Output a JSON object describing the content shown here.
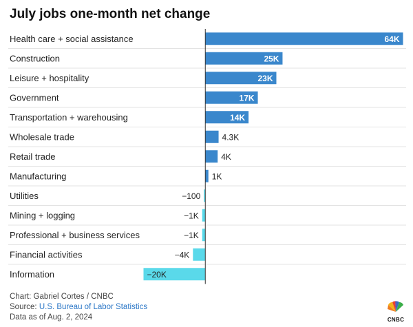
{
  "header": {
    "title": "July jobs one-month net change"
  },
  "colors": {
    "positive": "#3a87cc",
    "negative": "#5ad9ea",
    "gridline": "#e3e3e3",
    "axis": "#333333",
    "link": "#2a76c6"
  },
  "chart_data": {
    "type": "bar",
    "orientation": "horizontal",
    "title": "July jobs one-month net change",
    "xlabel": "",
    "ylabel": "",
    "xlim": [
      -21000,
      65000
    ],
    "categories": [
      "Health care + social assistance",
      "Construction",
      "Leisure + hospitality",
      "Government",
      "Transportation + warehousing",
      "Wholesale trade",
      "Retail trade",
      "Manufacturing",
      "Utilities",
      "Mining + logging",
      "Professional + business services",
      "Financial activities",
      "Information"
    ],
    "values": [
      64000,
      25000,
      23000,
      17000,
      14000,
      4300,
      4000,
      1000,
      -100,
      -1000,
      -1000,
      -4000,
      -20000
    ],
    "labels": [
      "64K",
      "25K",
      "23K",
      "17K",
      "14K",
      "4.3K",
      "4K",
      "1K",
      "−100",
      "−1K",
      "−1K",
      "−4K",
      "−20K"
    ]
  },
  "footer": {
    "credit": "Chart: Gabriel Cortes / CNBC",
    "source_prefix": "Source: ",
    "source_link": "U.S. Bureau of Labor Statistics",
    "date": "Data as of Aug. 2, 2024"
  },
  "logo": {
    "text": "CNBC",
    "icon": "peacock-icon"
  }
}
